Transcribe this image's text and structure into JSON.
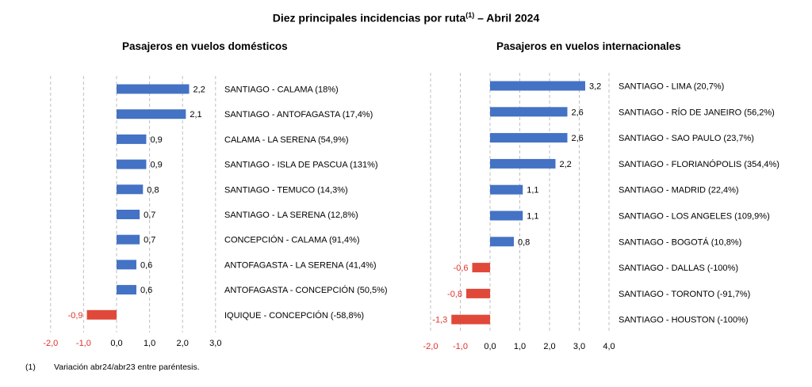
{
  "title": "Diez principales incidencias por ruta",
  "title_sup": "(1)",
  "title_suffix": " – Abril 2024",
  "footnote": {
    "mark": "(1)",
    "text": "Variación abr24/abr23 entre paréntesis."
  },
  "colors": {
    "positive": "#4472C4",
    "negative": "#E0493A",
    "negative_text": "#E0312A",
    "grid": "#BFBFBF"
  },
  "chart_data": [
    {
      "type": "bar",
      "orientation": "horizontal",
      "title": "Pasajeros en vuelos domésticos",
      "categories": [
        "SANTIAGO - CALAMA (18%)",
        "SANTIAGO - ANTOFAGASTA (17,4%)",
        "CALAMA - LA SERENA (54,9%)",
        "SANTIAGO - ISLA DE PASCUA (131%)",
        "SANTIAGO - TEMUCO (14,3%)",
        "SANTIAGO - LA SERENA (12,8%)",
        "CONCEPCIÓN - CALAMA (91,4%)",
        "ANTOFAGASTA - LA SERENA (41,4%)",
        "ANTOFAGASTA - CONCEPCIÓN (50,5%)",
        "IQUIQUE - CONCEPCIÓN (-58,8%)"
      ],
      "values": [
        2.2,
        2.1,
        0.9,
        0.9,
        0.8,
        0.7,
        0.7,
        0.6,
        0.6,
        -0.9
      ],
      "value_labels": [
        "2,2",
        "2,1",
        "0,9",
        "0,9",
        "0,8",
        "0,7",
        "0,7",
        "0,6",
        "0,6",
        "-0,9"
      ],
      "xlim": [
        -2.0,
        3.0
      ],
      "ticks": [
        -2.0,
        -1.0,
        0.0,
        1.0,
        2.0,
        3.0
      ],
      "tick_labels": [
        "-2,0",
        "-1,0",
        "0,0",
        "1,0",
        "2,0",
        "3,0"
      ],
      "grid": "vertical dashed"
    },
    {
      "type": "bar",
      "orientation": "horizontal",
      "title": "Pasajeros en vuelos internacionales",
      "categories": [
        "SANTIAGO - LIMA (20,7%)",
        "SANTIAGO - RÍO DE JANEIRO (56,2%)",
        "SANTIAGO - SAO PAULO (23,7%)",
        "SANTIAGO - FLORIANÓPOLIS (354,4%)",
        "SANTIAGO - MADRID (22,4%)",
        "SANTIAGO - LOS ANGELES (109,9%)",
        "SANTIAGO - BOGOTÁ (10,8%)",
        "SANTIAGO - DALLAS (-100%)",
        "SANTIAGO - TORONTO (-91,7%)",
        "SANTIAGO - HOUSTON (-100%)"
      ],
      "values": [
        3.2,
        2.6,
        2.6,
        2.2,
        1.1,
        1.1,
        0.8,
        -0.6,
        -0.8,
        -1.3
      ],
      "value_labels": [
        "3,2",
        "2,6",
        "2,6",
        "2,2",
        "1,1",
        "1,1",
        "0,8",
        "-0,6",
        "-0,8",
        "-1,3"
      ],
      "xlim": [
        -2.0,
        4.0
      ],
      "ticks": [
        -2.0,
        -1.0,
        0.0,
        1.0,
        2.0,
        3.0,
        4.0
      ],
      "tick_labels": [
        "-2,0",
        "-1,0",
        "0,0",
        "1,0",
        "2,0",
        "3,0",
        "4,0"
      ],
      "grid": "vertical dashed"
    }
  ]
}
